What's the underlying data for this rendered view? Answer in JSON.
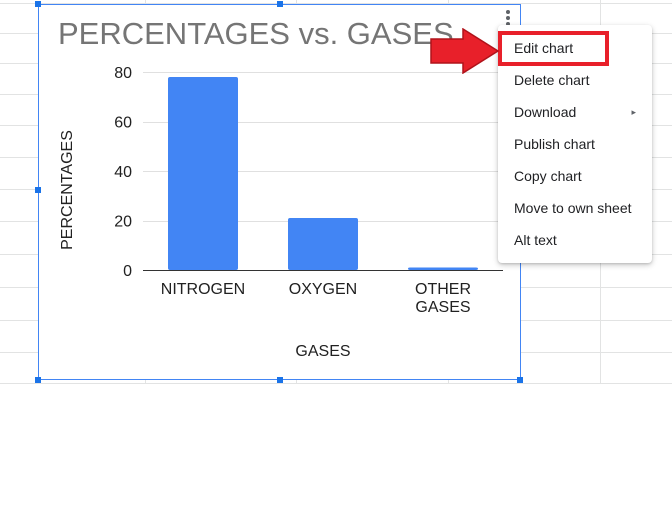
{
  "chart_data": {
    "type": "bar",
    "title": "PERCENTAGES vs. GASES",
    "xlabel": "GASES",
    "ylabel": "PERCENTAGES",
    "categories": [
      [
        "NITROGEN"
      ],
      [
        "OXYGEN"
      ],
      [
        "OTHER",
        "GASES"
      ]
    ],
    "values": [
      78,
      21,
      1
    ],
    "ylim": [
      0,
      80
    ],
    "yticks": [
      0,
      20,
      40,
      60,
      80
    ],
    "grid": true,
    "legend": "none",
    "bar_color": "#4285f4"
  },
  "chart_menu": {
    "items": [
      {
        "label": "Edit chart",
        "submenu": false,
        "highlighted": true
      },
      {
        "label": "Delete chart",
        "submenu": false
      },
      {
        "label": "Download",
        "submenu": true
      },
      {
        "label": "Publish chart",
        "submenu": false
      },
      {
        "label": "Copy chart",
        "submenu": false
      },
      {
        "label": "Move to own sheet",
        "submenu": false
      },
      {
        "label": "Alt text",
        "submenu": false
      }
    ],
    "submenu_glyph": "▸"
  },
  "annotation": {
    "arrow_color": "#e8202a",
    "box_color": "#e8202a"
  },
  "colors": {
    "selection": "#1a73e8",
    "grid": "#e0e0e0",
    "title": "#757575"
  }
}
